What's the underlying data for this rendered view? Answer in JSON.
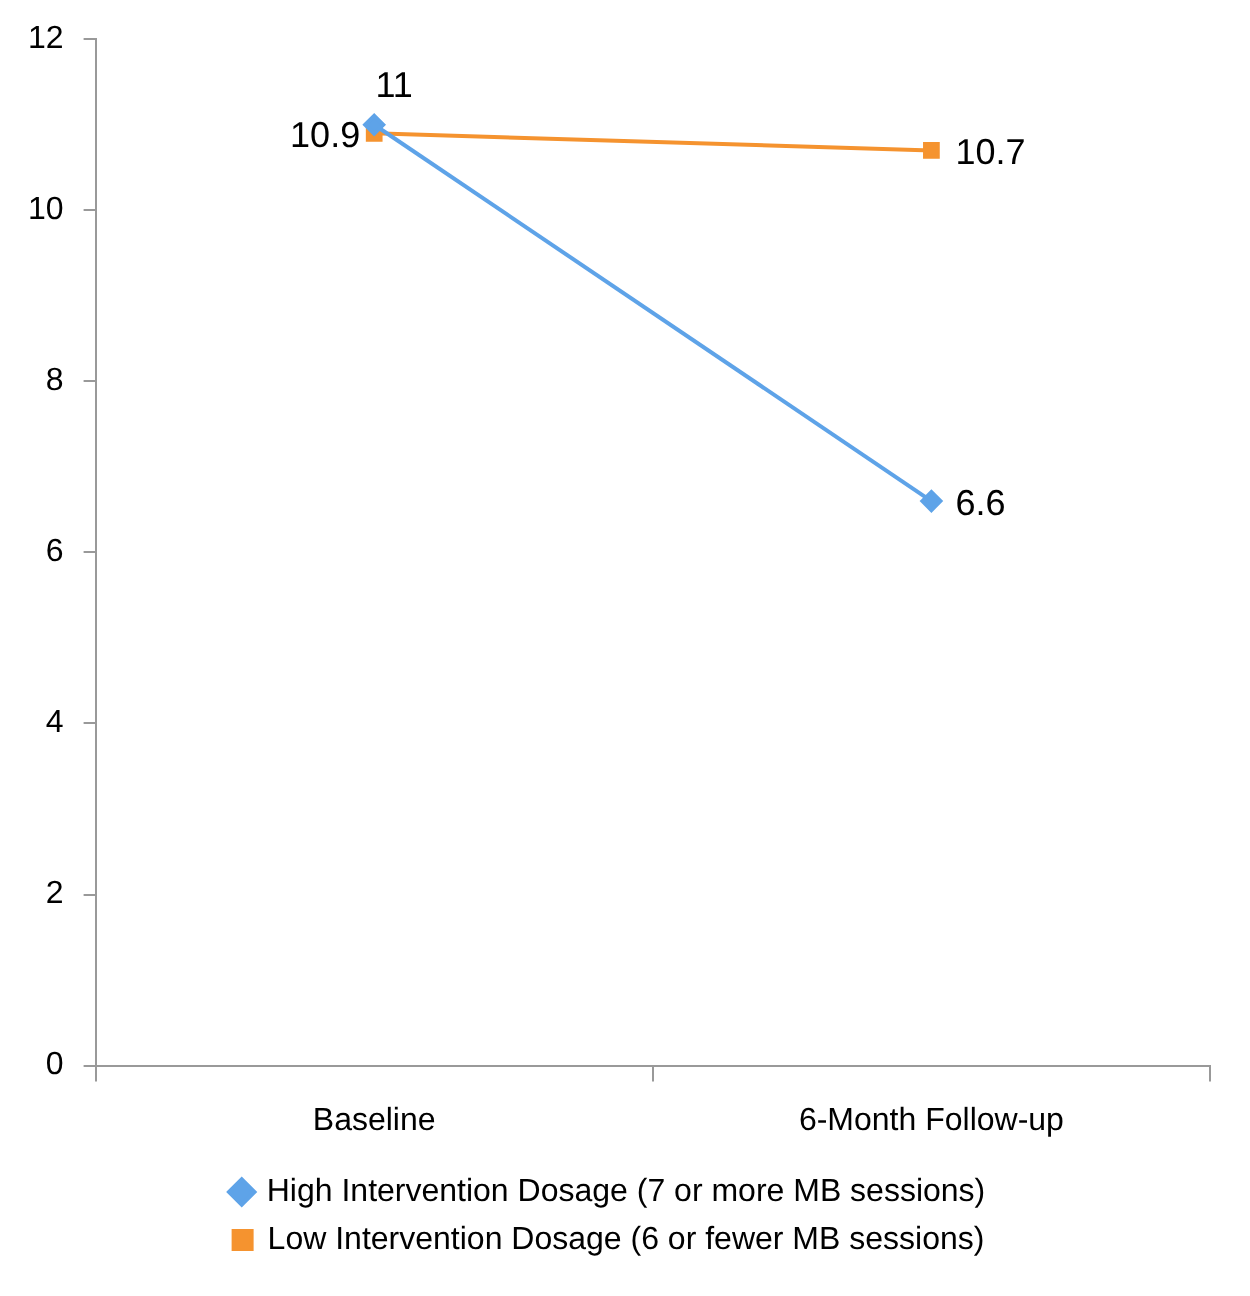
{
  "chart_data": {
    "type": "line",
    "categories": [
      "Baseline",
      "6-Month Follow-up"
    ],
    "series": [
      {
        "name": "High Intervention Dosage (7 or more MB sessions)",
        "color": "#5ea3e8",
        "values": [
          11,
          6.6
        ],
        "marker": "diamond"
      },
      {
        "name": "Low Intervention Dosage (6 or fewer MB sessions)",
        "color": "#f5932f",
        "values": [
          10.9,
          10.7
        ],
        "marker": "square"
      }
    ],
    "ylim": [
      0,
      12
    ],
    "yticks": [
      0,
      2,
      4,
      6,
      8,
      10,
      12
    ],
    "grid": false,
    "legend": "bottom",
    "data_labels": true
  }
}
